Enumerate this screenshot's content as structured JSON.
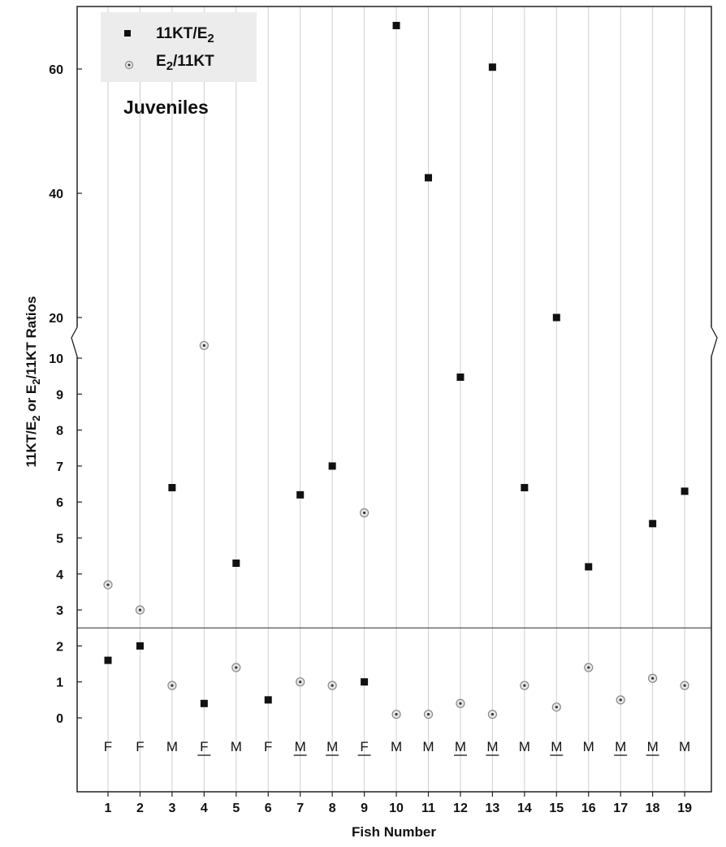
{
  "chart_data": {
    "type": "scatter",
    "xlabel": "Fish Number",
    "ylabel": "11KT/E2 or E2/11KT Ratios",
    "categories": [
      "1",
      "2",
      "3",
      "4",
      "5",
      "6",
      "7",
      "8",
      "9",
      "10",
      "11",
      "12",
      "13",
      "14",
      "15",
      "16",
      "17",
      "18",
      "19"
    ],
    "series": [
      {
        "name": "11KT/E2",
        "marker": "square",
        "values": [
          1.6,
          2.0,
          6.4,
          0.4,
          4.3,
          0.5,
          6.2,
          7.0,
          1.0,
          67,
          42.5,
          10.4,
          60.3,
          6.4,
          20,
          4.2,
          null,
          5.4,
          6.3
        ]
      },
      {
        "name": "E2/11KT",
        "marker": "dotted-circle",
        "values": [
          3.7,
          3.0,
          0.9,
          15.5,
          1.4,
          null,
          1.0,
          0.9,
          5.7,
          0.1,
          0.1,
          0.4,
          0.1,
          0.9,
          0.3,
          1.4,
          0.5,
          1.1,
          0.9
        ]
      }
    ],
    "sex_labels": [
      {
        "label": "F",
        "underline": false
      },
      {
        "label": "F",
        "underline": false
      },
      {
        "label": "M",
        "underline": false
      },
      {
        "label": "F",
        "underline": true
      },
      {
        "label": "M",
        "underline": false
      },
      {
        "label": "F",
        "underline": false
      },
      {
        "label": "M",
        "underline": true
      },
      {
        "label": "M",
        "underline": true
      },
      {
        "label": "F",
        "underline": true
      },
      {
        "label": "M",
        "underline": false
      },
      {
        "label": "M",
        "underline": false
      },
      {
        "label": "M",
        "underline": true
      },
      {
        "label": "M",
        "underline": true
      },
      {
        "label": "M",
        "underline": false
      },
      {
        "label": "M",
        "underline": true
      },
      {
        "label": "M",
        "underline": false
      },
      {
        "label": "M",
        "underline": true
      },
      {
        "label": "M",
        "underline": true
      },
      {
        "label": "M",
        "underline": false
      }
    ],
    "y_ticks_lower": [
      0,
      1,
      2,
      3,
      4,
      5,
      6,
      7,
      8,
      9,
      10
    ],
    "y_ticks_upper": [
      20,
      40,
      60
    ],
    "y_axis_break": [
      10,
      20
    ],
    "reference_line_y": 2.5,
    "annotation": "Juveniles",
    "legend_position": "top-left",
    "grid": "vertical lines at each fish"
  }
}
